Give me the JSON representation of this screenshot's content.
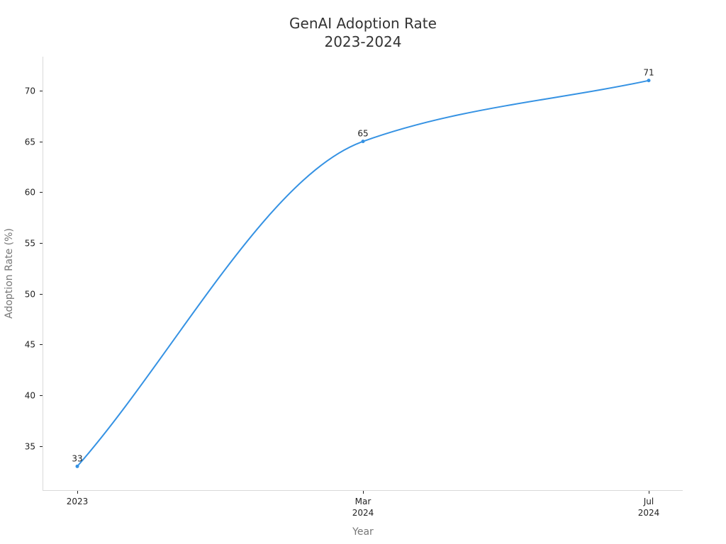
{
  "chart_data": {
    "type": "line",
    "title_lines": [
      "GenAI Adoption Rate",
      "2023-2024"
    ],
    "xlabel": "Year",
    "ylabel": "Adoption Rate (%)",
    "x_tick_labels": [
      [
        "2023"
      ],
      [
        "Mar",
        "2024"
      ],
      [
        "Jul",
        "2024"
      ]
    ],
    "x": [
      "2023",
      "Mar 2024",
      "Jul 2024"
    ],
    "ylim": [
      31,
      73
    ],
    "y_ticks": [
      35,
      40,
      45,
      50,
      55,
      60,
      65,
      70
    ],
    "grid": false,
    "series": [
      {
        "values": [
          33,
          65,
          71
        ],
        "color": "#3592e3",
        "data_labels": [
          "33",
          "65",
          "71"
        ]
      }
    ]
  }
}
